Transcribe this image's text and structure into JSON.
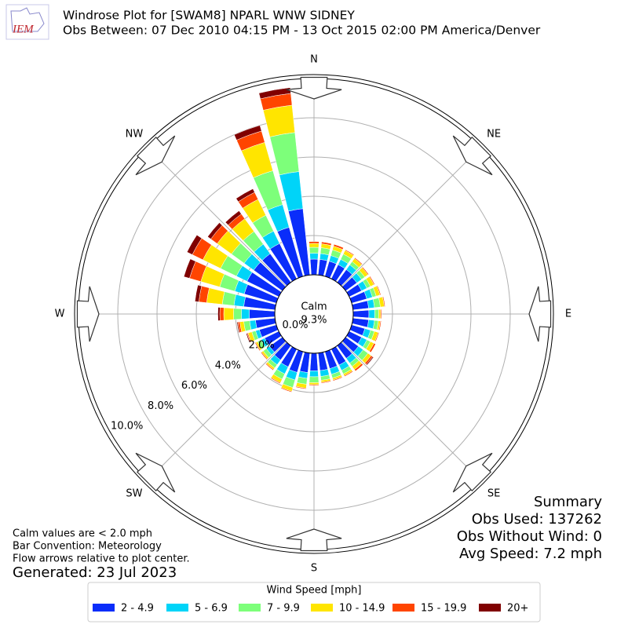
{
  "chart_data": {
    "type": "windrose",
    "logo_text": "IEM",
    "title": "Windrose Plot for [SWAM8] NPARL WNW SIDNEY",
    "subtitle": "Obs Between: 07 Dec 2010 04:15 PM - 13 Oct 2015 02:00 PM America/Denver",
    "x": [
      0,
      10,
      20,
      30,
      40,
      50,
      60,
      70,
      80,
      90,
      100,
      110,
      120,
      130,
      140,
      150,
      160,
      170,
      180,
      190,
      200,
      210,
      220,
      230,
      240,
      250,
      260,
      270,
      280,
      290,
      300,
      310,
      320,
      330,
      340,
      350
    ],
    "compass_labels": [
      "N",
      "NE",
      "E",
      "SE",
      "S",
      "SW",
      "W",
      "NW"
    ],
    "calm_label": "Calm",
    "calm_value": {
      "value": 9.3,
      "label": "9.3%"
    },
    "ylim": [
      0,
      10
    ],
    "yticks": [
      {
        "value": 0,
        "label": "0.0%"
      },
      {
        "value": 2,
        "label": "2.0%"
      },
      {
        "value": 4,
        "label": "4.0%"
      },
      {
        "value": 6,
        "label": "6.0%"
      },
      {
        "value": 8,
        "label": "8.0%"
      },
      {
        "value": 10,
        "label": "10.0%"
      }
    ],
    "grid": true,
    "legend_title": "Wind Speed [mph]",
    "series": [
      {
        "name": "2 - 4.9",
        "color": "#0a2dfa",
        "values": [
          0.8,
          0.8,
          0.8,
          0.8,
          0.8,
          0.7,
          0.7,
          0.8,
          0.8,
          0.8,
          0.8,
          0.7,
          0.7,
          0.8,
          0.8,
          0.9,
          0.9,
          0.9,
          0.9,
          1.0,
          1.1,
          1.0,
          0.9,
          0.8,
          0.8,
          0.9,
          1.0,
          1.3,
          1.6,
          1.7,
          1.8,
          1.8,
          1.8,
          2.0,
          2.6,
          3.4
        ]
      },
      {
        "name": "5 - 6.9",
        "color": "#00d4f8",
        "values": [
          0.3,
          0.3,
          0.3,
          0.3,
          0.3,
          0.3,
          0.3,
          0.3,
          0.3,
          0.3,
          0.3,
          0.3,
          0.3,
          0.3,
          0.3,
          0.3,
          0.3,
          0.3,
          0.3,
          0.3,
          0.4,
          0.4,
          0.3,
          0.2,
          0.2,
          0.2,
          0.3,
          0.4,
          0.5,
          0.5,
          0.6,
          0.6,
          0.6,
          0.7,
          1.2,
          1.9
        ]
      },
      {
        "name": "7 - 9.9",
        "color": "#7dff7a",
        "values": [
          0.3,
          0.3,
          0.3,
          0.3,
          0.2,
          0.2,
          0.2,
          0.2,
          0.3,
          0.2,
          0.2,
          0.2,
          0.2,
          0.3,
          0.2,
          0.2,
          0.2,
          0.2,
          0.3,
          0.3,
          0.4,
          0.3,
          0.2,
          0.2,
          0.2,
          0.2,
          0.3,
          0.4,
          0.6,
          0.8,
          0.9,
          0.8,
          0.8,
          0.9,
          1.8,
          2.0
        ]
      },
      {
        "name": "10 - 14.9",
        "color": "#ffe500",
        "values": [
          0.2,
          0.2,
          0.2,
          0.2,
          0.2,
          0.2,
          0.2,
          0.2,
          0.2,
          0.1,
          0.1,
          0.2,
          0.2,
          0.2,
          0.2,
          0.1,
          0.1,
          0.1,
          0.1,
          0.2,
          0.2,
          0.2,
          0.1,
          0.1,
          0.1,
          0.2,
          0.2,
          0.5,
          0.8,
          1.0,
          1.0,
          0.9,
          0.8,
          0.9,
          1.5,
          1.4
        ]
      },
      {
        "name": "15 - 19.9",
        "color": "#ff4500",
        "values": [
          0.1,
          0.1,
          0.1,
          0.05,
          0.05,
          0.05,
          0.05,
          0.05,
          0.05,
          0.05,
          0.05,
          0.05,
          0.1,
          0.1,
          0.1,
          0.05,
          0.05,
          0.05,
          0.05,
          0.05,
          0.05,
          0.05,
          0.05,
          0.05,
          0.05,
          0.05,
          0.1,
          0.2,
          0.4,
          0.6,
          0.6,
          0.4,
          0.3,
          0.4,
          0.6,
          0.6
        ]
      },
      {
        "name": "20+",
        "color": "#800000",
        "values": [
          0,
          0,
          0,
          0,
          0,
          0,
          0,
          0,
          0,
          0,
          0,
          0,
          0,
          0.05,
          0,
          0,
          0,
          0,
          0,
          0,
          0,
          0,
          0,
          0,
          0,
          0.05,
          0.05,
          0.1,
          0.2,
          0.3,
          0.3,
          0.2,
          0.2,
          0.2,
          0.3,
          0.3
        ]
      }
    ],
    "summary": [
      "Summary",
      "Obs Used: 137262",
      "Obs Without Wind: 0",
      "Avg Speed: 7.2 mph"
    ],
    "notes": [
      "Calm values are < 2.0 mph",
      "Bar Convention: Meteorology",
      "Flow arrows relative to plot center."
    ],
    "generated": "Generated: 23 Jul 2023"
  }
}
